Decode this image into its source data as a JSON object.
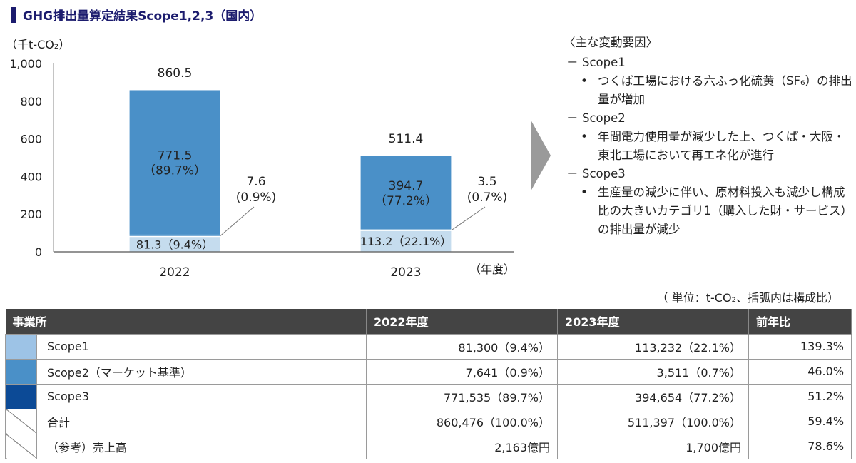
{
  "header": {
    "title": "GHG排出量算定結果Scope1,2,3（国内）"
  },
  "chart_data": {
    "type": "bar",
    "stacked": true,
    "unit_label": "（千t-CO₂）",
    "year_unit": "（年度）",
    "categories": [
      "2022",
      "2023"
    ],
    "ylim": [
      0,
      1000
    ],
    "yticks": [
      {
        "v": 0,
        "label": "0"
      },
      {
        "v": 200,
        "label": "200"
      },
      {
        "v": 400,
        "label": "400"
      },
      {
        "v": 600,
        "label": "600"
      },
      {
        "v": 800,
        "label": "800"
      },
      {
        "v": 1000,
        "label": "1,000"
      }
    ],
    "series": [
      {
        "key": "scope1",
        "color": "#c5dcee",
        "values": [
          81.3,
          113.2
        ],
        "labels": [
          "81.3（9.4%）",
          "113.2（22.1%）"
        ]
      },
      {
        "key": "scope2",
        "color": "#4a90c8",
        "values": [
          7.6,
          3.5
        ],
        "labels_line1": [
          "7.6",
          "3.5"
        ],
        "labels_line2": [
          "(0.9%)",
          "(0.7%)"
        ]
      },
      {
        "key": "scope3",
        "color": "#4a90c8",
        "values": [
          771.5,
          394.7
        ],
        "labels_line1": [
          "771.5",
          "394.7"
        ],
        "labels_line2": [
          "（89.7%）",
          "（77.2%）"
        ]
      }
    ],
    "totals": [
      "860.5",
      "511.4"
    ]
  },
  "notes": {
    "heading": "〈主な変動要因〉",
    "groups": [
      {
        "scope": "Scope1",
        "bullets": [
          "つくば工場における六ふっ化硫黄（SF₆）の排出量が増加"
        ]
      },
      {
        "scope": "Scope2",
        "bullets": [
          "年間電力使用量が減少した上、つくば・大阪・東北工場において再エネ化が進行"
        ]
      },
      {
        "scope": "Scope3",
        "bullets": [
          "生産量の減少に伴い、原材料投入も減少し構成比の大きいカテゴリ1（購入した財・サービス）の排出量が減少"
        ]
      }
    ],
    "dash": "－",
    "bullet": "•"
  },
  "table": {
    "unit_note": "（ 単位：t-CO₂、括弧内は構成比）",
    "headers": [
      "事業所",
      "2022年度",
      "2023年度",
      "前年比"
    ],
    "rows": [
      {
        "label": "Scope1",
        "c2022": "81,300（9.4%）",
        "c2023": "113,232（22.1%）",
        "ratio": "139.3%",
        "swatch": "#9dc3e6"
      },
      {
        "label": "Scope2（マーケット基準）",
        "c2022": "7,641（0.9%）",
        "c2023": "3,511（0.7%）",
        "ratio": "46.0%",
        "swatch": "#4a90c8"
      },
      {
        "label": "Scope3",
        "c2022": "771,535（89.7%）",
        "c2023": "394,654（77.2%）",
        "ratio": "51.2%",
        "swatch": "#0c4a96"
      },
      {
        "label": "合計",
        "c2022": "860,476（100.0%）",
        "c2023": "511,397（100.0%）",
        "ratio": "59.4%"
      },
      {
        "label": "（参考）売上高",
        "c2022": "2,163億円",
        "c2023": "1,700億円",
        "ratio": "78.6%"
      }
    ]
  }
}
